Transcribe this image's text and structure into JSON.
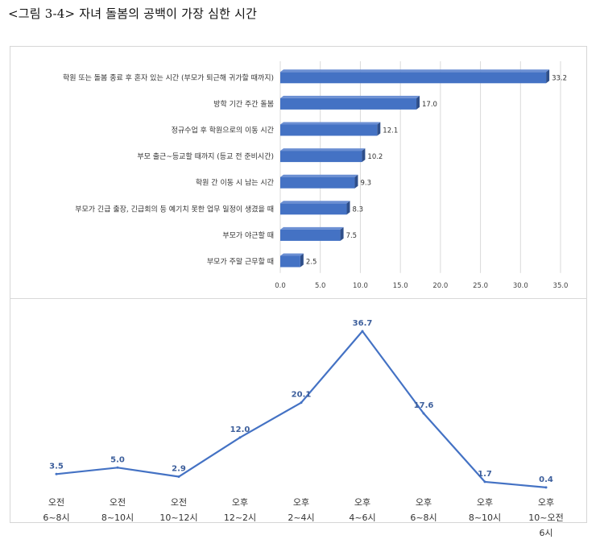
{
  "figure_title": "<그림 3-4> 자녀 돌봄의 공백이 가장 심한 시간",
  "chart_data": [
    {
      "type": "bar",
      "orientation": "horizontal",
      "categories": [
        "학원 또는 돌봄 종료 후 혼자 있는 시간 (부모가 퇴근해 귀가할 때까지)",
        "방학 기간 주간 돌봄",
        "정규수업 후 학원으로의 이동 시간",
        "부모 출근~등교할 때까지 (등교 전 준비시간)",
        "학원 간 이동 시 남는 시간",
        "부모가 긴급 출장, 긴급회의 등 예기치 못한 업무 일정이 생겼을 때",
        "부모가 야근할 때",
        "부모가 주말 근무할 때"
      ],
      "values": [
        33.2,
        17.0,
        12.1,
        10.2,
        9.3,
        8.3,
        7.5,
        2.5
      ],
      "value_labels": [
        "33.2",
        "17.0",
        "12.1",
        "10.2",
        "9.3",
        "8.3",
        "7.5",
        "2.5"
      ],
      "xticks": [
        "0.0",
        "5.0",
        "10.0",
        "15.0",
        "20.0",
        "25.0",
        "30.0",
        "35.0"
      ],
      "xlim": [
        0,
        35
      ],
      "grid": true,
      "color": "#4472c4"
    },
    {
      "type": "line",
      "categories": [
        [
          "오전",
          "6~8시"
        ],
        [
          "오전",
          "8~10시"
        ],
        [
          "오전",
          "10~12시"
        ],
        [
          "오후",
          "12~2시"
        ],
        [
          "오후",
          "2~4시"
        ],
        [
          "오후",
          "4~6시"
        ],
        [
          "오후",
          "6~8시"
        ],
        [
          "오후",
          "8~10시"
        ],
        [
          "오후",
          "10~오전",
          "6시"
        ]
      ],
      "values": [
        3.5,
        5.0,
        2.9,
        12.0,
        20.1,
        36.7,
        17.6,
        1.7,
        0.4
      ],
      "value_labels": [
        "3.5",
        "5.0",
        "2.9",
        "12.0",
        "20.1",
        "36.7",
        "17.6",
        "1.7",
        "0.4"
      ],
      "ylim": [
        0,
        36.7
      ],
      "grid": false,
      "color": "#4472c4",
      "label_color": "#3d5f9c"
    }
  ]
}
